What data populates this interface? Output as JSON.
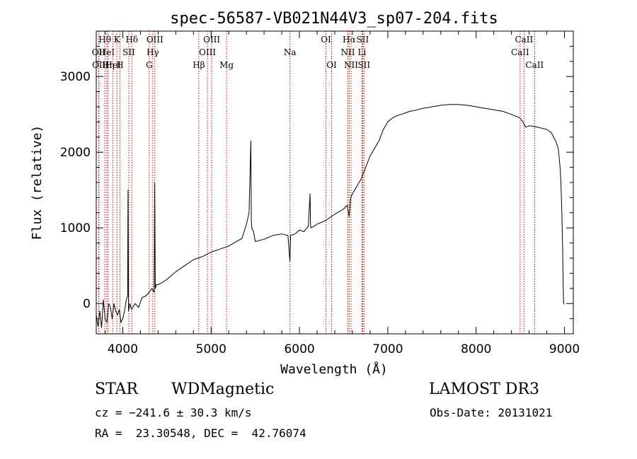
{
  "chart_data": {
    "type": "line",
    "title": "spec-56587-VB021N44V3_sp07-204.fits",
    "xlabel": "Wavelength (Å)",
    "ylabel": "Flux (relative)",
    "xlim": [
      3700,
      9100
    ],
    "ylim": [
      -400,
      3600
    ],
    "x_ticks": [
      4000,
      5000,
      6000,
      7000,
      8000,
      9000
    ],
    "y_ticks": [
      0,
      1000,
      2000,
      3000
    ],
    "series": [
      {
        "name": "flux",
        "x": [
          3700,
          3720,
          3740,
          3760,
          3780,
          3800,
          3820,
          3840,
          3860,
          3880,
          3900,
          3920,
          3940,
          3960,
          3980,
          4000,
          4020,
          4040,
          4055,
          4060,
          4065,
          4080,
          4100,
          4140,
          4180,
          4220,
          4260,
          4300,
          4330,
          4355,
          4362,
          4368,
          4380,
          4400,
          4450,
          4500,
          4600,
          4700,
          4800,
          4900,
          5000,
          5100,
          5200,
          5300,
          5350,
          5400,
          5430,
          5450,
          5455,
          5460,
          5480,
          5500,
          5600,
          5700,
          5800,
          5870,
          5892,
          5900,
          5950,
          6000,
          6050,
          6100,
          6120,
          6125,
          6130,
          6150,
          6200,
          6300,
          6400,
          6500,
          6540,
          6563,
          6580,
          6600,
          6650,
          6700,
          6750,
          6800,
          6850,
          6900,
          6950,
          7000,
          7050,
          7100,
          7150,
          7200,
          7250,
          7300,
          7400,
          7500,
          7600,
          7700,
          7800,
          7900,
          8000,
          8100,
          8200,
          8300,
          8400,
          8500,
          8540,
          8560,
          8600,
          8700,
          8800,
          8850,
          8900,
          8930,
          8950,
          8960,
          8970,
          8980,
          8985,
          8990,
          8995
        ],
        "values": [
          -150,
          -300,
          -100,
          -320,
          50,
          -200,
          -250,
          0,
          -50,
          -200,
          0,
          -100,
          -150,
          -80,
          -250,
          -200,
          -100,
          50,
          100,
          1500,
          -100,
          0,
          -80,
          0,
          -50,
          80,
          100,
          150,
          200,
          150,
          1600,
          200,
          250,
          250,
          280,
          320,
          420,
          500,
          580,
          620,
          680,
          720,
          760,
          830,
          860,
          1050,
          1200,
          2150,
          1100,
          1000,
          950,
          820,
          850,
          900,
          920,
          900,
          560,
          900,
          920,
          970,
          950,
          1020,
          1450,
          1050,
          1000,
          1010,
          1050,
          1100,
          1180,
          1250,
          1300,
          1150,
          1400,
          1450,
          1550,
          1650,
          1800,
          1950,
          2050,
          2150,
          2300,
          2400,
          2450,
          2480,
          2500,
          2520,
          2540,
          2550,
          2580,
          2600,
          2620,
          2630,
          2630,
          2620,
          2600,
          2580,
          2560,
          2540,
          2500,
          2450,
          2380,
          2330,
          2350,
          2330,
          2300,
          2260,
          2150,
          2050,
          1800,
          1600,
          1200,
          700,
          300,
          0,
          -10
        ]
      }
    ],
    "line_markers": [
      {
        "wavelength": 3797,
        "label": "Hθ",
        "row": 0
      },
      {
        "wavelength": 3727,
        "label": "OII",
        "row": 1
      },
      {
        "wavelength": 3820,
        "label": "HeI",
        "row": 1
      },
      {
        "wavelength": 3730,
        "label": "OII",
        "row": 2
      },
      {
        "wavelength": 3835,
        "label": "Hη",
        "row": 2
      },
      {
        "wavelength": 3889,
        "label": "HeI",
        "row": 2
      },
      {
        "wavelength": 3934,
        "label": "K",
        "row": 0
      },
      {
        "wavelength": 3968,
        "label": "H",
        "row": 2
      },
      {
        "wavelength": 4068,
        "label": "SII",
        "row": 1
      },
      {
        "wavelength": 4102,
        "label": "Hδ",
        "row": 0
      },
      {
        "wavelength": 4300,
        "label": "G",
        "row": 2
      },
      {
        "wavelength": 4340,
        "label": "Hγ",
        "row": 1
      },
      {
        "wavelength": 4363,
        "label": "OIII",
        "row": 0
      },
      {
        "wavelength": 4861,
        "label": "Hβ",
        "row": 2
      },
      {
        "wavelength": 4959,
        "label": "OIII",
        "row": 1
      },
      {
        "wavelength": 5007,
        "label": "OIII",
        "row": 0
      },
      {
        "wavelength": 5175,
        "label": "Mg",
        "row": 2
      },
      {
        "wavelength": 5893,
        "label": "Na",
        "row": 1
      },
      {
        "wavelength": 6300,
        "label": "OI",
        "row": 0
      },
      {
        "wavelength": 6364,
        "label": "OI",
        "row": 2
      },
      {
        "wavelength": 6548,
        "label": "NII",
        "row": 1
      },
      {
        "wavelength": 6563,
        "label": "Hα",
        "row": 0
      },
      {
        "wavelength": 6584,
        "label": "NII",
        "row": 2
      },
      {
        "wavelength": 6708,
        "label": "Li",
        "row": 1
      },
      {
        "wavelength": 6716,
        "label": "SII",
        "row": 0
      },
      {
        "wavelength": 6731,
        "label": "SII",
        "row": 2
      },
      {
        "wavelength": 8498,
        "label": "CaII",
        "row": 1
      },
      {
        "wavelength": 8542,
        "label": "CaII",
        "row": 0
      },
      {
        "wavelength": 8662,
        "label": "CaII",
        "row": 2
      }
    ]
  },
  "info": {
    "class": "STAR",
    "subclass": "WDMagnetic",
    "survey": "LAMOST DR3",
    "cz": "cz = −241.6 ± 30.3 km/s",
    "obs_date": "Obs-Date: 20131021",
    "radec": "RA =  23.30548, DEC =  42.76074"
  },
  "colors": {
    "axis": "#000000",
    "spectrum": "#000000",
    "marker_line": "#c00000"
  }
}
